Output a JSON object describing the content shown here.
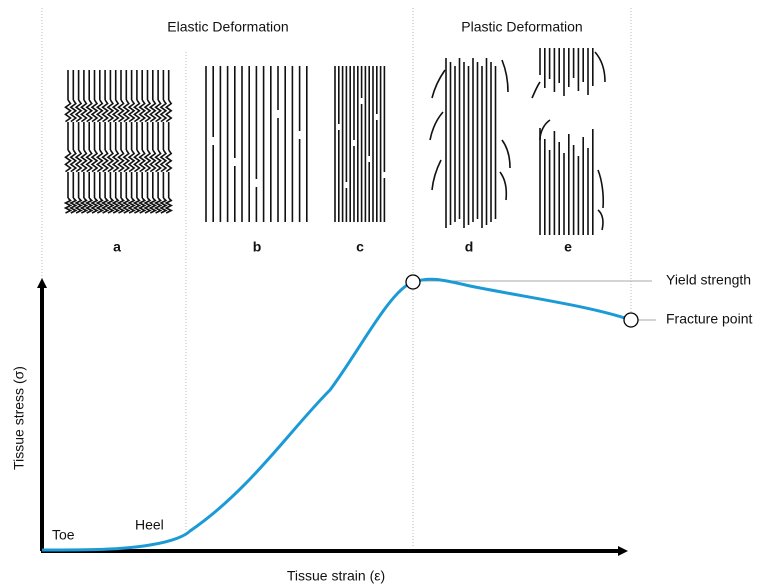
{
  "sections": {
    "elastic": "Elastic Deformation",
    "plastic": "Plastic Deformation"
  },
  "panels": [
    "a",
    "b",
    "c",
    "d",
    "e"
  ],
  "points": {
    "yield": "Yield strength",
    "fracture": "Fracture point"
  },
  "regions": {
    "toe": "Toe",
    "heel": "Heel"
  },
  "axes": {
    "y": "Tissue stress (σ)",
    "x": "Tissue strain (ε)"
  }
}
